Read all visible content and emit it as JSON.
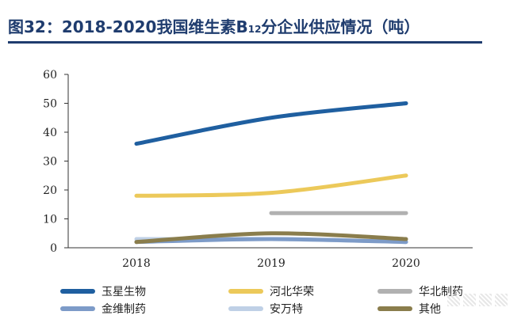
{
  "title": {
    "main": "图32：2018-2020我国维生素B",
    "subscript": "12",
    "rest": "分企业供应情况（吨）"
  },
  "chart_data": {
    "type": "line",
    "title": "图32：2018-2020我国维生素B12分企业供应情况（吨）",
    "xlabel": "",
    "ylabel": "",
    "categories": [
      "2018",
      "2019",
      "2020"
    ],
    "ylim": [
      0,
      60
    ],
    "yticks": [
      "0",
      "10",
      "20",
      "30",
      "40",
      "50",
      "60"
    ],
    "grid": false,
    "legend_position": "bottom",
    "series": [
      {
        "name": "玉星生物",
        "values": [
          36,
          45,
          50
        ],
        "color": "#1f5fa0"
      },
      {
        "name": "河北华荣",
        "values": [
          18,
          19,
          25
        ],
        "color": "#ecc95a"
      },
      {
        "name": "华北制药",
        "values": [
          null,
          12,
          12
        ],
        "color": "#b1b1b1"
      },
      {
        "name": "金维制药",
        "values": [
          2,
          3,
          2
        ],
        "color": "#7d9bc8"
      },
      {
        "name": "安万特",
        "values": [
          3,
          3,
          2
        ],
        "color": "#bfd0e6"
      },
      {
        "name": "其他",
        "values": [
          2,
          5,
          3
        ],
        "color": "#8a7d4c"
      }
    ]
  }
}
